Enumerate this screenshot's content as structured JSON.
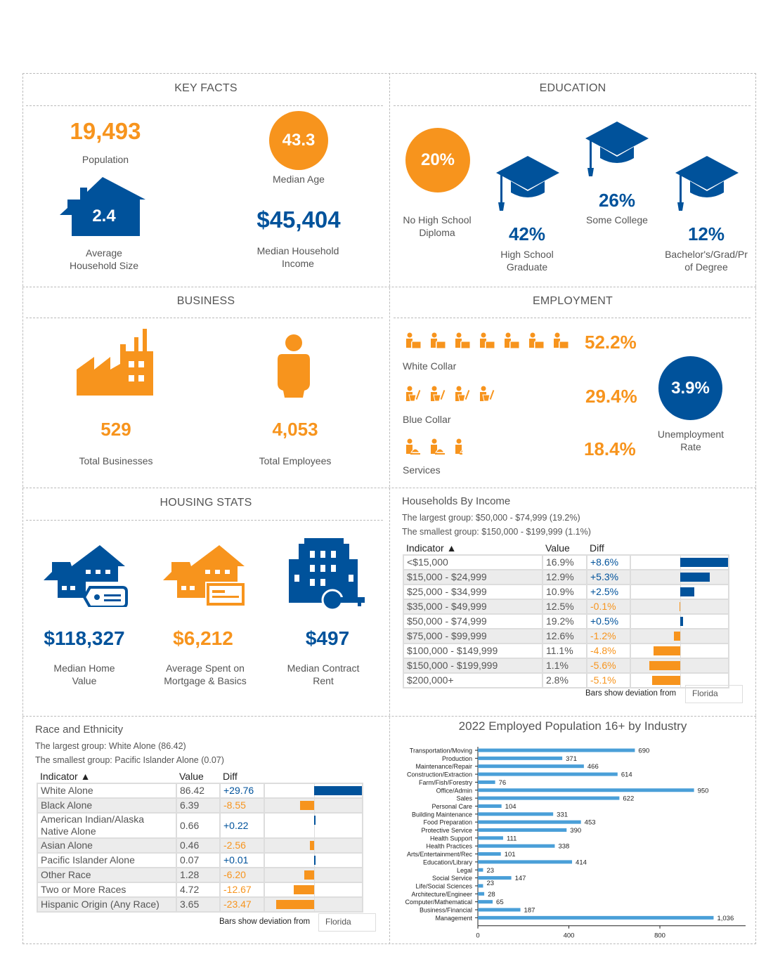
{
  "colors": {
    "orange": "#f7941d",
    "blue": "#00529b",
    "bar_light": "#4a9fd8"
  },
  "key_facts": {
    "title": "KEY FACTS",
    "population": {
      "value": "19,493",
      "label": "Population"
    },
    "median_age": {
      "value": "43.3",
      "label": "Median Age"
    },
    "household_size": {
      "value": "2.4",
      "label_line1": "Average",
      "label_line2": "Household Size"
    },
    "median_income": {
      "value": "$45,404",
      "label_line1": "Median Household",
      "label_line2": "Income"
    }
  },
  "education": {
    "title": "EDUCATION",
    "items": [
      {
        "value": "20%",
        "label_line1": "No High School",
        "label_line2": "Diploma"
      },
      {
        "value": "42%",
        "label_line1": "High School",
        "label_line2": "Graduate"
      },
      {
        "value": "26%",
        "label_line1": "Some College",
        "label_line2": ""
      },
      {
        "value": "12%",
        "label_line1": "Bachelor's/Grad/Pr",
        "label_line2": "of Degree"
      }
    ]
  },
  "business": {
    "title": "BUSINESS",
    "businesses": {
      "value": "529",
      "label": "Total Businesses"
    },
    "employees": {
      "value": "4,053",
      "label": "Total Employees"
    }
  },
  "employment": {
    "title": "EMPLOYMENT",
    "rows": [
      {
        "label": "White Collar",
        "value": "52.2%",
        "icon": "white-collar-worker-icon",
        "icon_count": 7
      },
      {
        "label": "Blue Collar",
        "value": "29.4%",
        "icon": "blue-collar-worker-icon",
        "icon_count": 4
      },
      {
        "label": "Services",
        "value": "18.4%",
        "icon": "service-worker-icon",
        "icon_count": 2.5
      }
    ],
    "unemployment": {
      "value": "3.9%",
      "label_line1": "Unemployment",
      "label_line2": "Rate"
    }
  },
  "housing": {
    "title": "HOUSING STATS",
    "items": [
      {
        "value": "$118,327",
        "label_line1": "Median Home",
        "label_line2": "Value"
      },
      {
        "value": "$6,212",
        "label_line1": "Average Spent on",
        "label_line2": "Mortgage & Basics"
      },
      {
        "value": "$497",
        "label_line1": "Median Contract",
        "label_line2": "Rent"
      }
    ]
  },
  "income": {
    "title": "Households By Income",
    "largest": "The largest group: $50,000 - $74,999 (19.2%)",
    "smallest": "The smallest group: $150,000 - $199,999 (1.1%)",
    "headers": {
      "indicator": "Indicator ▲",
      "value": "Value",
      "diff": "Diff"
    },
    "rows": [
      {
        "indicator": "<$15,000",
        "value": "16.9%",
        "diff": "+8.6%",
        "d": 8.6
      },
      {
        "indicator": "$15,000 - $24,999",
        "value": "12.9%",
        "diff": "+5.3%",
        "d": 5.3
      },
      {
        "indicator": "$25,000 - $34,999",
        "value": "10.9%",
        "diff": "+2.5%",
        "d": 2.5
      },
      {
        "indicator": "$35,000 - $49,999",
        "value": "12.5%",
        "diff": "-0.1%",
        "d": -0.1
      },
      {
        "indicator": "$50,000 - $74,999",
        "value": "19.2%",
        "diff": "+0.5%",
        "d": 0.5
      },
      {
        "indicator": "$75,000 - $99,999",
        "value": "12.6%",
        "diff": "-1.2%",
        "d": -1.2
      },
      {
        "indicator": "$100,000 - $149,999",
        "value": "11.1%",
        "diff": "-4.8%",
        "d": -4.8
      },
      {
        "indicator": "$150,000 - $199,999",
        "value": "1.1%",
        "diff": "-5.6%",
        "d": -5.6
      },
      {
        "indicator": "$200,000+",
        "value": "2.8%",
        "diff": "-5.1%",
        "d": -5.1
      }
    ],
    "deviation_note": "Bars show deviation from",
    "deviation_from": "Florida"
  },
  "race": {
    "title": "Race and Ethnicity",
    "largest": "The largest group: White Alone (86.42)",
    "smallest": "The smallest group: Pacific Islander Alone (0.07)",
    "headers": {
      "indicator": "Indicator ▲",
      "value": "Value",
      "diff": "Diff"
    },
    "rows": [
      {
        "indicator": "White Alone",
        "value": "86.42",
        "diff": "+29.76",
        "d": 29.76
      },
      {
        "indicator": "Black Alone",
        "value": "6.39",
        "diff": "-8.55",
        "d": -8.55
      },
      {
        "indicator": "American Indian/Alaska Native Alone",
        "value": "0.66",
        "diff": "+0.22",
        "d": 0.22
      },
      {
        "indicator": "Asian Alone",
        "value": "0.46",
        "diff": "-2.56",
        "d": -2.56
      },
      {
        "indicator": "Pacific Islander Alone",
        "value": "0.07",
        "diff": "+0.01",
        "d": 0.01
      },
      {
        "indicator": "Other Race",
        "value": "1.28",
        "diff": "-6.20",
        "d": -6.2
      },
      {
        "indicator": "Two or More Races",
        "value": "4.72",
        "diff": "-12.67",
        "d": -12.67
      },
      {
        "indicator": "Hispanic Origin (Any Race)",
        "value": "3.65",
        "diff": "-23.47",
        "d": -23.47
      }
    ],
    "deviation_note": "Bars show deviation from",
    "deviation_from": "Florida"
  },
  "chart_data": {
    "type": "bar",
    "orientation": "horizontal",
    "title": "2022 Employed Population 16+ by Industry",
    "categories": [
      "Transportation/Moving",
      "Production",
      "Maintenance/Repair",
      "Construction/Extraction",
      "Farm/Fish/Forestry",
      "Office/Admin",
      "Sales",
      "Personal Care",
      "Building Maintenance",
      "Food Preparation",
      "Protective Service",
      "Health Support",
      "Health Practices",
      "Arts/Entertainment/Rec",
      "Education/Library",
      "Legal",
      "Social Service",
      "Life/Social Sciences",
      "Architecture/Engineer",
      "Computer/Mathematical",
      "Business/Financial",
      "Management"
    ],
    "values": [
      690,
      371,
      466,
      614,
      76,
      950,
      622,
      104,
      331,
      453,
      390,
      111,
      338,
      101,
      414,
      23,
      147,
      23,
      28,
      65,
      187,
      1036
    ],
    "data_labels": [
      "690",
      "371",
      "466",
      "614",
      "76",
      "950",
      "622",
      "104",
      "331",
      "453",
      "390",
      "111",
      "338",
      "101",
      "414",
      "23",
      "147",
      "23",
      "28",
      "65",
      "187",
      "1,036"
    ],
    "xlim": [
      0,
      1150
    ],
    "xticks": [
      "0",
      "400",
      "800"
    ],
    "grid": false
  }
}
